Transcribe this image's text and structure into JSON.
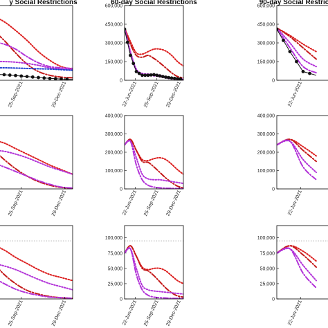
{
  "colors": {
    "dark_red": "#c41a1a",
    "red": "#dc1f1f",
    "purple": "#b233d8",
    "blue": "#1f3fd0",
    "black": "#111111",
    "grey_dotted": "#888888"
  },
  "x_tick_labels": [
    "22-Jun-2021",
    "25-Sep-2021",
    "29-Dec-2021"
  ],
  "chart_data": [
    {
      "type": "line",
      "title": "y Social Restrictions",
      "x": [
        0,
        10,
        20,
        30,
        40,
        50,
        60,
        70,
        80,
        90,
        100
      ],
      "ylim": [
        0,
        600000
      ],
      "yticks": [],
      "series": [
        {
          "style": "dotted",
          "color": "red",
          "values": [
            420000,
            505000,
            540000,
            515000,
            470000,
            400000,
            320000,
            230000,
            160000,
            110000,
            90000
          ]
        },
        {
          "style": "dashdot",
          "color": "dark_red",
          "values": [
            330000,
            420000,
            440000,
            400000,
            320000,
            220000,
            130000,
            70000,
            40000,
            25000,
            20000
          ]
        },
        {
          "style": "dashdot",
          "color": "purple",
          "values": [
            245000,
            270000,
            300000,
            305000,
            290000,
            250000,
            190000,
            140000,
            110000,
            100000,
            95000
          ]
        },
        {
          "style": "dotted",
          "color": "purple",
          "values": [
            130000,
            135000,
            145000,
            150000,
            150000,
            145000,
            135000,
            120000,
            100000,
            90000,
            85000
          ]
        },
        {
          "style": "dotted",
          "color": "blue",
          "values": [
            75000,
            85000,
            95000,
            100000,
            100000,
            98000,
            95000,
            92000,
            90000,
            85000,
            80000
          ]
        },
        {
          "style": "markers",
          "color": "black",
          "values": [
            40000,
            42000,
            45000,
            48000,
            45000,
            38000,
            30000,
            22000,
            15000,
            10000,
            8000
          ]
        }
      ]
    },
    {
      "type": "line",
      "title": "60-day Social Restrictions",
      "x": [
        0,
        10,
        20,
        30,
        40,
        50,
        60,
        70,
        80,
        90,
        100
      ],
      "ylim": [
        0,
        600000
      ],
      "yticks": [
        "0",
        "150,000",
        "300,000",
        "450,000",
        "600,000"
      ],
      "series": [
        {
          "style": "dotted",
          "color": "red",
          "values": [
            420000,
            310000,
            220000,
            210000,
            230000,
            250000,
            250000,
            235000,
            200000,
            150000,
            115000
          ]
        },
        {
          "style": "dashdot",
          "color": "dark_red",
          "values": [
            420000,
            290000,
            200000,
            185000,
            200000,
            175000,
            140000,
            100000,
            60000,
            30000,
            20000
          ]
        },
        {
          "style": "dashdot",
          "color": "purple",
          "values": [
            420000,
            220000,
            80000,
            45000,
            40000,
            35000,
            30000,
            20000,
            12000,
            8000,
            5000
          ]
        },
        {
          "style": "dotted",
          "color": "purple",
          "values": [
            420000,
            230000,
            90000,
            55000,
            50000,
            45000,
            40000,
            30000,
            20000,
            15000,
            12000
          ]
        },
        {
          "style": "markers",
          "color": "black",
          "values": [
            410000,
            200000,
            70000,
            40000,
            40000,
            45000,
            35000,
            25000,
            18000,
            12000,
            8000
          ]
        }
      ]
    },
    {
      "type": "line",
      "title": "90-day Social Restrictions",
      "x": [
        0,
        10,
        20,
        30
      ],
      "ylim": [
        0,
        600000
      ],
      "yticks": [
        "0",
        "150,000",
        "300,000",
        "450,000",
        "600,000"
      ],
      "series": [
        {
          "style": "dotted",
          "color": "red",
          "values": [
            420000,
            360000,
            290000,
            230000
          ]
        },
        {
          "style": "dashdot",
          "color": "dark_red",
          "values": [
            420000,
            350000,
            260000,
            170000
          ]
        },
        {
          "style": "dotted",
          "color": "purple",
          "values": [
            420000,
            300000,
            170000,
            110000
          ]
        },
        {
          "style": "dashdot",
          "color": "purple",
          "values": [
            420000,
            260000,
            110000,
            60000
          ]
        },
        {
          "style": "markers",
          "color": "black",
          "values": [
            410000,
            230000,
            70000,
            40000
          ]
        }
      ]
    },
    {
      "type": "line",
      "title": "",
      "x": [
        0,
        10,
        20,
        30,
        40,
        50,
        60,
        70,
        80,
        90,
        100
      ],
      "ylim": [
        0,
        400000
      ],
      "yticks": [],
      "series": [
        {
          "style": "dashdot",
          "color": "dark_red",
          "values": [
            255000,
            260000,
            250000,
            215000,
            160000,
            110000,
            70000,
            40000,
            20000,
            8000,
            3000
          ]
        },
        {
          "style": "dotted",
          "color": "red",
          "values": [
            230000,
            255000,
            265000,
            265000,
            250000,
            220000,
            190000,
            160000,
            130000,
            105000,
            80000
          ]
        },
        {
          "style": "dotted",
          "color": "purple",
          "values": [
            170000,
            185000,
            200000,
            210000,
            205000,
            190000,
            170000,
            145000,
            120000,
            100000,
            80000
          ]
        },
        {
          "style": "dashdot",
          "color": "purple",
          "values": [
            120000,
            130000,
            140000,
            140000,
            120000,
            95000,
            70000,
            45000,
            25000,
            10000,
            5000
          ]
        }
      ]
    },
    {
      "type": "line",
      "title": "",
      "x": [
        0,
        10,
        20,
        30,
        40,
        50,
        60,
        70,
        80,
        90,
        100
      ],
      "ylim": [
        0,
        400000
      ],
      "yticks": [
        "0",
        "100,000",
        "200,000",
        "300,000",
        "400,000"
      ],
      "series": [
        {
          "style": "dotted",
          "color": "red",
          "values": [
            240000,
            270000,
            210000,
            160000,
            155000,
            165000,
            170000,
            160000,
            135000,
            105000,
            80000
          ]
        },
        {
          "style": "dashdot",
          "color": "dark_red",
          "values": [
            240000,
            270000,
            210000,
            150000,
            145000,
            120000,
            90000,
            60000,
            35000,
            15000,
            5000
          ]
        },
        {
          "style": "dotted",
          "color": "purple",
          "values": [
            240000,
            260000,
            170000,
            80000,
            55000,
            50000,
            50000,
            45000,
            40000,
            35000,
            30000
          ]
        },
        {
          "style": "dashdot",
          "color": "purple",
          "values": [
            240000,
            260000,
            130000,
            50000,
            20000,
            10000,
            6000,
            4000,
            3000,
            2000,
            2000
          ]
        }
      ]
    },
    {
      "type": "line",
      "title": "",
      "x": [
        0,
        10,
        20,
        30
      ],
      "ylim": [
        0,
        400000
      ],
      "yticks": [
        "0",
        "100,000",
        "200,000",
        "300,000",
        "400,000"
      ],
      "series": [
        {
          "style": "dotted",
          "color": "red",
          "values": [
            240000,
            270000,
            230000,
            180000
          ]
        },
        {
          "style": "dashdot",
          "color": "dark_red",
          "values": [
            240000,
            270000,
            210000,
            150000
          ]
        },
        {
          "style": "dotted",
          "color": "purple",
          "values": [
            240000,
            260000,
            160000,
            90000
          ]
        },
        {
          "style": "dashdot",
          "color": "purple",
          "values": [
            240000,
            260000,
            120000,
            50000
          ]
        }
      ]
    },
    {
      "type": "line",
      "title": "",
      "x": [
        0,
        10,
        20,
        30,
        40,
        50,
        60,
        70,
        80,
        90,
        100
      ],
      "ylim": [
        0,
        120000
      ],
      "yticks": [],
      "reference_line": 95000,
      "series": [
        {
          "style": "dashdot",
          "color": "dark_red",
          "values": [
            85000,
            88000,
            80000,
            60000,
            40000,
            25000,
            14000,
            8000,
            4000,
            2000,
            1000
          ]
        },
        {
          "style": "dotted",
          "color": "red",
          "values": [
            82000,
            88000,
            90000,
            88000,
            80000,
            68000,
            58000,
            48000,
            40000,
            35000,
            30000
          ]
        },
        {
          "style": "dotted",
          "color": "purple",
          "values": [
            50000,
            55000,
            58000,
            58000,
            54000,
            48000,
            40000,
            32000,
            25000,
            20000,
            15000
          ]
        },
        {
          "style": "dashdot",
          "color": "purple",
          "values": [
            42000,
            45000,
            42000,
            35000,
            25000,
            16000,
            10000,
            6000,
            3000,
            2000,
            1000
          ]
        }
      ]
    },
    {
      "type": "line",
      "title": "",
      "x": [
        0,
        10,
        20,
        30,
        40,
        50,
        60,
        70,
        80,
        90,
        100
      ],
      "ylim": [
        0,
        120000
      ],
      "yticks": [
        "0",
        "25,000",
        "50,000",
        "75,000",
        "100,000"
      ],
      "reference_line": 95000,
      "series": [
        {
          "style": "dotted",
          "color": "red",
          "values": [
            75000,
            87000,
            70000,
            52000,
            48000,
            50000,
            50000,
            46000,
            38000,
            30000,
            25000
          ]
        },
        {
          "style": "dashdot",
          "color": "dark_red",
          "values": [
            75000,
            87000,
            70000,
            50000,
            46000,
            38000,
            28000,
            18000,
            10000,
            5000,
            3000
          ]
        },
        {
          "style": "dotted",
          "color": "purple",
          "values": [
            75000,
            82000,
            50000,
            22000,
            15000,
            13000,
            12000,
            11000,
            10000,
            9000,
            8000
          ]
        },
        {
          "style": "dashdot",
          "color": "purple",
          "values": [
            75000,
            82000,
            40000,
            15000,
            6000,
            3000,
            2000,
            1500,
            1000,
            800,
            600
          ]
        }
      ]
    },
    {
      "type": "line",
      "title": "",
      "x": [
        0,
        10,
        20,
        30
      ],
      "ylim": [
        0,
        120000
      ],
      "yticks": [
        "0",
        "25,000",
        "50,000",
        "75,000",
        "100,000"
      ],
      "reference_line": 95000,
      "series": [
        {
          "style": "dotted",
          "color": "red",
          "values": [
            75000,
            87000,
            78000,
            62000
          ]
        },
        {
          "style": "dashdot",
          "color": "dark_red",
          "values": [
            75000,
            87000,
            72000,
            52000
          ]
        },
        {
          "style": "dotted",
          "color": "purple",
          "values": [
            75000,
            82000,
            55000,
            30000
          ]
        },
        {
          "style": "dashdot",
          "color": "purple",
          "values": [
            75000,
            82000,
            42000,
            18000
          ]
        }
      ]
    }
  ]
}
